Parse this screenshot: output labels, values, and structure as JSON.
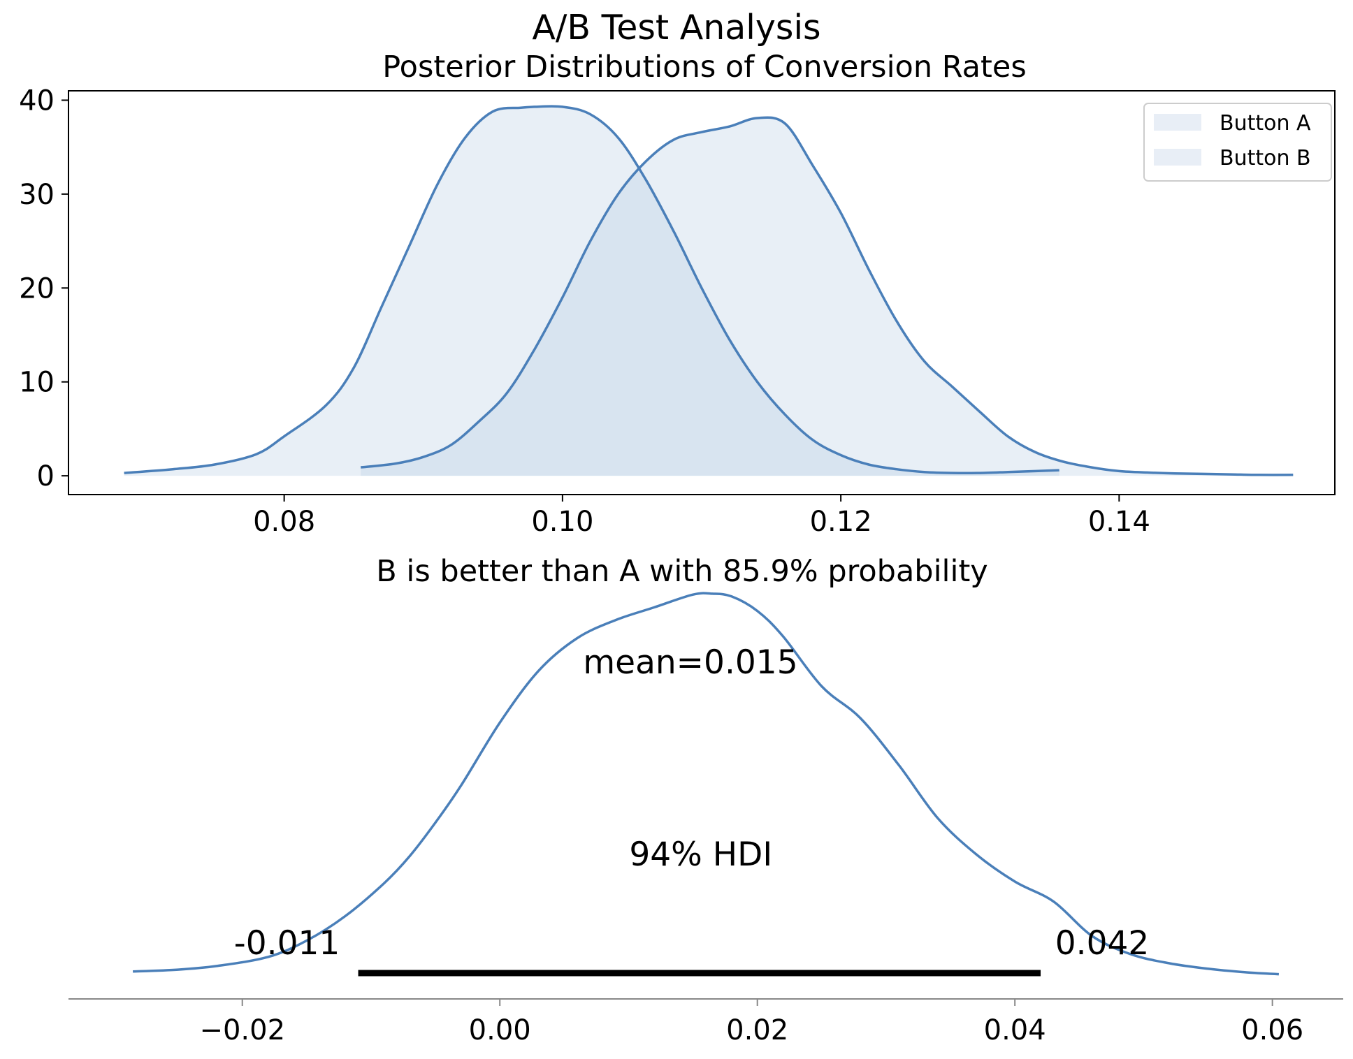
{
  "title": "A/B Test Analysis",
  "colors": {
    "line": "#4a7fb9",
    "fill": "#e8eef6",
    "overlap_fill": "#d4e0ec",
    "axis": "#000000",
    "hdi_bar": "#000000"
  },
  "chart_data": [
    {
      "type": "area",
      "title": "Posterior Distributions of Conversion Rates",
      "xlabel": "",
      "ylabel": "",
      "xlim": [
        0.0645,
        0.1555
      ],
      "ylim": [
        -2,
        41
      ],
      "xticks": [
        0.08,
        0.1,
        0.12,
        0.14
      ],
      "xtick_labels": [
        "0.08",
        "0.10",
        "0.12",
        "0.14"
      ],
      "yticks": [
        0,
        10,
        20,
        30,
        40
      ],
      "ytick_labels": [
        "0",
        "10",
        "20",
        "30",
        "40"
      ],
      "legend": {
        "placement": "top-right",
        "entries": [
          "Button A",
          "Button B"
        ]
      },
      "grid": false,
      "series": [
        {
          "name": "Button A",
          "x": [
            0.0685,
            0.072,
            0.075,
            0.078,
            0.08,
            0.083,
            0.085,
            0.087,
            0.089,
            0.091,
            0.093,
            0.095,
            0.097,
            0.098,
            0.1,
            0.102,
            0.104,
            0.106,
            0.108,
            0.11,
            0.112,
            0.114,
            0.116,
            0.118,
            0.12,
            0.122,
            0.124,
            0.126,
            0.128,
            0.13,
            0.132,
            0.134,
            0.1357
          ],
          "y": [
            0.3,
            0.7,
            1.2,
            2.3,
            4.2,
            7.5,
            11.5,
            18.0,
            24.5,
            31.0,
            36.0,
            38.8,
            39.2,
            39.3,
            39.3,
            38.5,
            36.0,
            31.5,
            26.0,
            20.0,
            14.5,
            10.0,
            6.5,
            3.8,
            2.2,
            1.2,
            0.7,
            0.4,
            0.3,
            0.3,
            0.4,
            0.5,
            0.6
          ]
        },
        {
          "name": "Button B",
          "x": [
            0.0855,
            0.088,
            0.09,
            0.092,
            0.094,
            0.096,
            0.098,
            0.1,
            0.102,
            0.104,
            0.106,
            0.108,
            0.11,
            0.112,
            0.114,
            0.116,
            0.118,
            0.12,
            0.122,
            0.124,
            0.126,
            0.128,
            0.13,
            0.132,
            0.134,
            0.136,
            0.138,
            0.14,
            0.142,
            0.144,
            0.146,
            0.148,
            0.15,
            0.1525
          ],
          "y": [
            0.9,
            1.3,
            2.0,
            3.3,
            5.8,
            8.8,
            13.5,
            19.0,
            25.0,
            30.0,
            33.5,
            35.8,
            36.6,
            37.2,
            38.1,
            37.5,
            33.0,
            28.0,
            22.0,
            16.5,
            12.2,
            9.5,
            6.8,
            4.2,
            2.5,
            1.5,
            0.9,
            0.5,
            0.35,
            0.25,
            0.2,
            0.15,
            0.1,
            0.1
          ]
        }
      ]
    },
    {
      "type": "line",
      "title": "B is better than A with 85.9% probability",
      "xlabel": "",
      "ylabel": "",
      "xlim": [
        -0.0335,
        0.0655
      ],
      "xticks": [
        -0.02,
        0.0,
        0.02,
        0.04,
        0.06
      ],
      "xtick_labels": [
        "−0.02",
        "0.00",
        "0.02",
        "0.04",
        "0.06"
      ],
      "grid": false,
      "series": [
        {
          "x": [
            -0.0285,
            -0.025,
            -0.022,
            -0.018,
            -0.015,
            -0.012,
            -0.009,
            -0.007,
            -0.005,
            -0.003,
            0.0,
            0.003,
            0.006,
            0.009,
            0.012,
            0.015,
            0.0165,
            0.018,
            0.02,
            0.022,
            0.025,
            0.028,
            0.031,
            0.034,
            0.037,
            0.04,
            0.043,
            0.046,
            0.049,
            0.052,
            0.055,
            0.058,
            0.0605
          ],
          "y": [
            0.01,
            0.03,
            0.07,
            0.17,
            0.35,
            0.62,
            0.98,
            1.28,
            1.65,
            2.06,
            2.75,
            3.32,
            3.68,
            3.88,
            4.02,
            4.16,
            4.17,
            4.14,
            3.98,
            3.7,
            3.15,
            2.8,
            2.28,
            1.7,
            1.3,
            1.0,
            0.78,
            0.4,
            0.2,
            0.1,
            0.04,
            0.0,
            -0.02
          ]
        }
      ],
      "annotations": {
        "mean_label": "mean=0.015",
        "hdi_label": "94% HDI",
        "hdi_low": -0.011,
        "hdi_high": 0.042,
        "hdi_low_label": "-0.011",
        "hdi_high_label": "0.042"
      }
    }
  ]
}
